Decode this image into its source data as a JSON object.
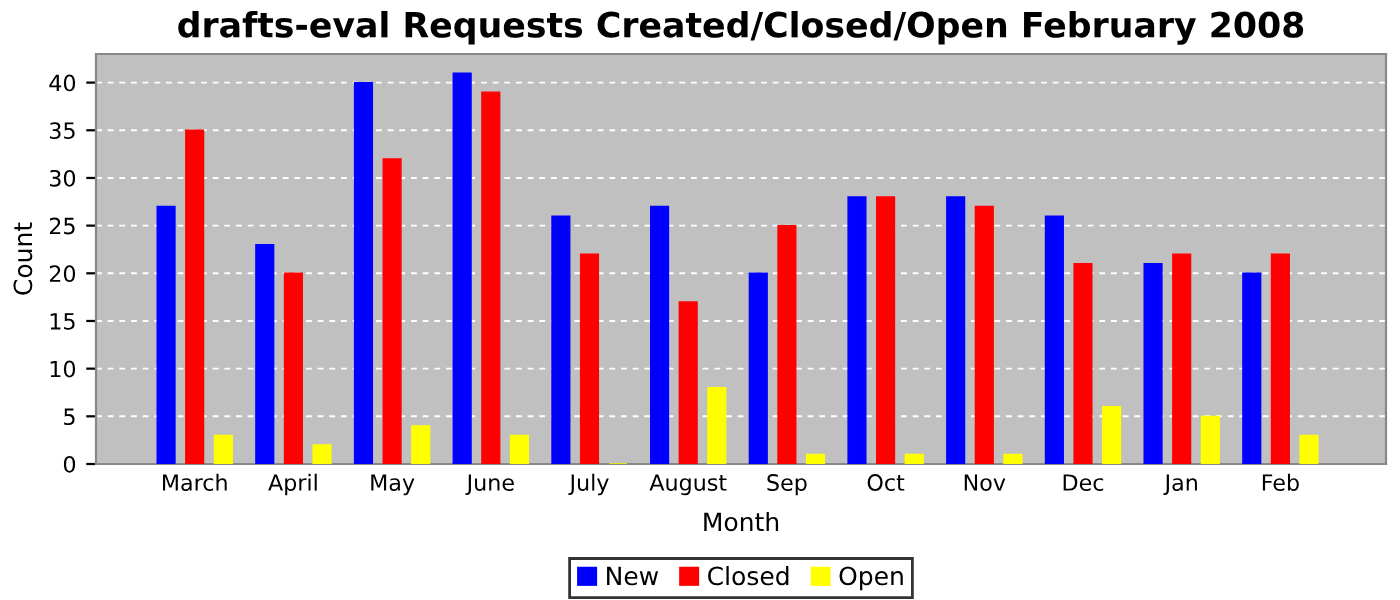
{
  "chart_data": {
    "type": "bar",
    "title": "drafts-eval Requests Created/Closed/Open February 2008",
    "xlabel": "Month",
    "ylabel": "Count",
    "categories": [
      "March",
      "April",
      "May",
      "June",
      "July",
      "August",
      "Sep",
      "Oct",
      "Nov",
      "Dec",
      "Jan",
      "Feb"
    ],
    "series": [
      {
        "name": "New",
        "color": "#0000ff",
        "values": [
          27,
          23,
          40,
          41,
          26,
          27,
          20,
          28,
          28,
          26,
          21,
          20
        ]
      },
      {
        "name": "Closed",
        "color": "#ff0000",
        "values": [
          35,
          20,
          32,
          39,
          22,
          17,
          25,
          28,
          27,
          21,
          22,
          22
        ]
      },
      {
        "name": "Open",
        "color": "#ffff00",
        "values": [
          3,
          2,
          4,
          3,
          0,
          8,
          1,
          1,
          1,
          6,
          5,
          3
        ]
      }
    ],
    "ylim": [
      0,
      43
    ],
    "yticks": [
      0,
      5,
      10,
      15,
      20,
      25,
      30,
      35,
      40
    ],
    "grid": "y",
    "legend": "bottom"
  }
}
